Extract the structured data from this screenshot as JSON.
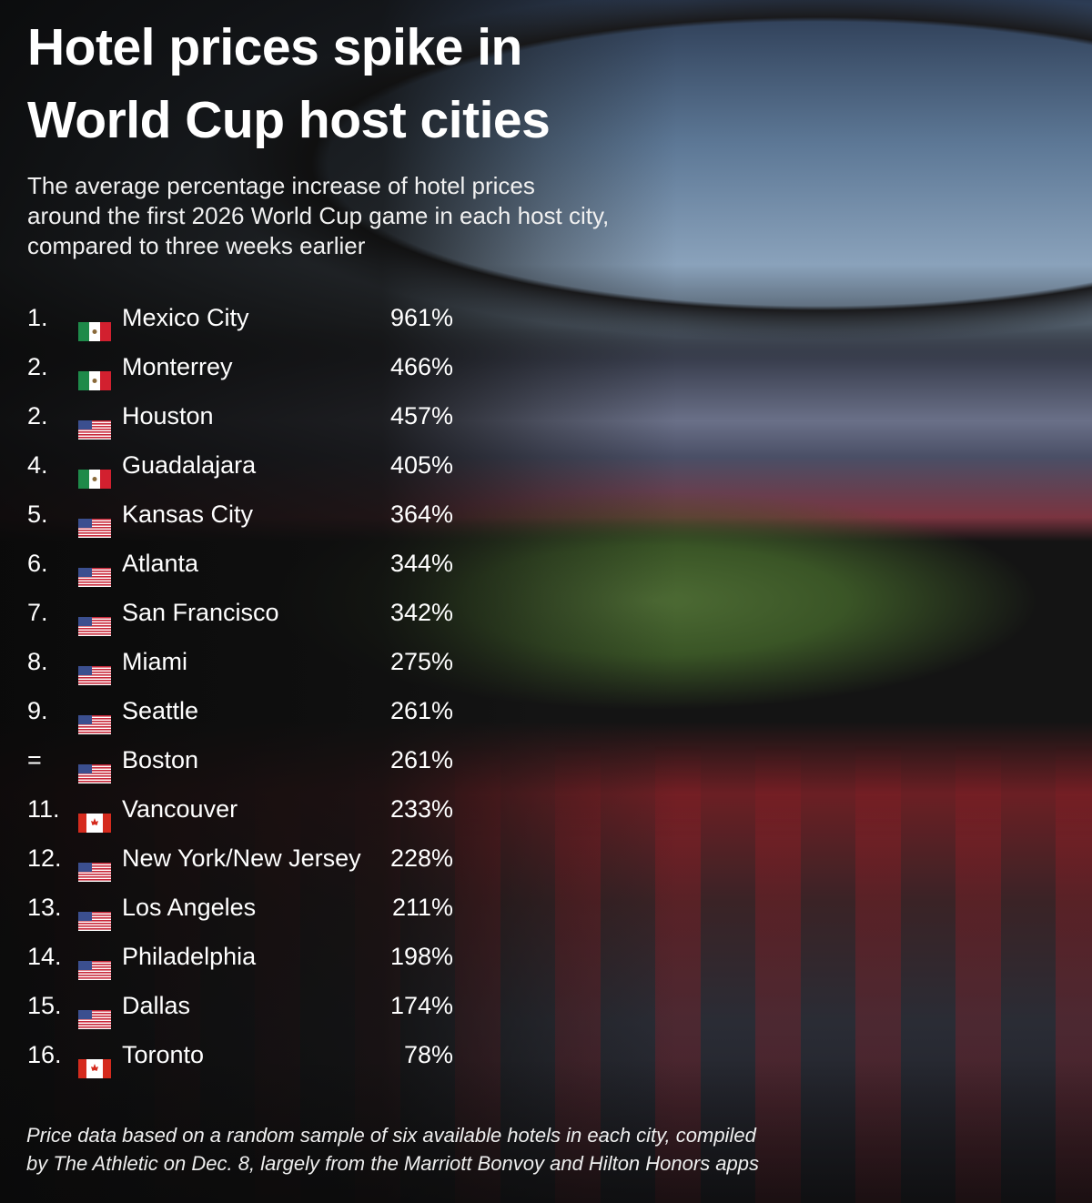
{
  "title": "Hotel prices spike in World Cup host cities",
  "subtitle": "The average percentage increase of hotel prices around the first 2026 World Cup game in each host city, compared to three weeks earlier",
  "footnote": "Price data based on a random sample of six available hotels in each city, compiled by The Athletic on Dec. 8, largely from the Marriott Bonvoy and Hilton Honors apps",
  "chart_data": {
    "type": "table",
    "title": "Hotel prices spike in World Cup host cities",
    "columns": [
      "rank",
      "flag",
      "city",
      "increase"
    ],
    "rows": [
      {
        "rank": "1.",
        "country": "mexico",
        "city": "Mexico City",
        "value": 961,
        "label": "961%"
      },
      {
        "rank": "2.",
        "country": "mexico",
        "city": "Monterrey",
        "value": 466,
        "label": "466%"
      },
      {
        "rank": "2.",
        "country": "usa",
        "city": "Houston",
        "value": 457,
        "label": "457%"
      },
      {
        "rank": "4.",
        "country": "mexico",
        "city": "Guadalajara",
        "value": 405,
        "label": "405%"
      },
      {
        "rank": "5.",
        "country": "usa",
        "city": "Kansas City",
        "value": 364,
        "label": "364%"
      },
      {
        "rank": "6.",
        "country": "usa",
        "city": "Atlanta",
        "value": 344,
        "label": "344%"
      },
      {
        "rank": "7.",
        "country": "usa",
        "city": "San Francisco",
        "value": 342,
        "label": "342%"
      },
      {
        "rank": "8.",
        "country": "usa",
        "city": "Miami",
        "value": 275,
        "label": "275%"
      },
      {
        "rank": "9.",
        "country": "usa",
        "city": "Seattle",
        "value": 261,
        "label": "261%"
      },
      {
        "rank": "=",
        "country": "usa",
        "city": "Boston",
        "value": 261,
        "label": "261%"
      },
      {
        "rank": "11.",
        "country": "canada",
        "city": "Vancouver",
        "value": 233,
        "label": "233%"
      },
      {
        "rank": "12.",
        "country": "usa",
        "city": "New York/New Jersey",
        "value": 228,
        "label": "228%"
      },
      {
        "rank": "13.",
        "country": "usa",
        "city": "Los Angeles",
        "value": 211,
        "label": "211%"
      },
      {
        "rank": "14.",
        "country": "usa",
        "city": "Philadelphia",
        "value": 198,
        "label": "198%"
      },
      {
        "rank": "15.",
        "country": "usa",
        "city": "Dallas",
        "value": 174,
        "label": "174%"
      },
      {
        "rank": "16.",
        "country": "canada",
        "city": "Toronto",
        "value": 78,
        "label": "78%"
      }
    ]
  },
  "colors": {
    "text": "#ffffff",
    "mexico_green": "#1e8a4a",
    "mexico_red": "#d2202f",
    "usa_red": "#c8283a",
    "usa_blue": "#3b4f8f",
    "canada_red": "#d52b1e"
  }
}
